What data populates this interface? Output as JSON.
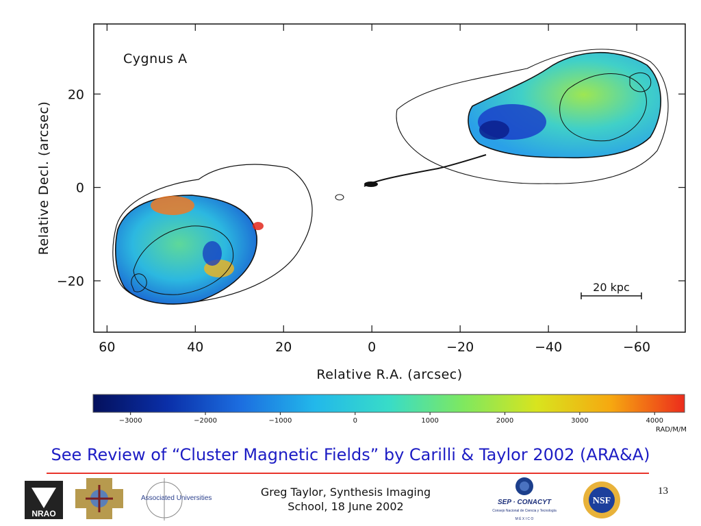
{
  "chart_data": {
    "type": "heatmap",
    "title": "Cygnus A",
    "xlabel": "Relative R.A. (arcsec)",
    "ylabel": "Relative Decl. (arcsec)",
    "xlim": [
      63,
      -71
    ],
    "ylim": [
      -31,
      35
    ],
    "x_ticks": [
      60,
      40,
      20,
      0,
      -20,
      -40,
      -60
    ],
    "x_tick_labels": [
      "60",
      "40",
      "20",
      "0",
      "−20",
      "−40",
      "−60"
    ],
    "y_ticks": [
      20,
      0,
      -20
    ],
    "y_tick_labels": [
      "20",
      "0",
      "−20"
    ],
    "scale_bar": {
      "label": "20 kpc"
    },
    "colorbar": {
      "range": [
        -3500,
        4400
      ],
      "ticks": [
        -3000,
        -2000,
        -1000,
        0,
        1000,
        2000,
        3000,
        4000
      ],
      "tick_labels": [
        "−3000",
        "−2000",
        "−1000",
        "0",
        "1000",
        "2000",
        "3000",
        "4000"
      ],
      "unit": "RAD/M/M",
      "colormap": [
        "#04105c",
        "#0a2fa8",
        "#1c6ee0",
        "#22b8ea",
        "#38dcc8",
        "#7ee860",
        "#d8e41e",
        "#f6a810",
        "#ec2c1c"
      ]
    },
    "components": [
      {
        "name": "eastern lobe",
        "center": [
          40,
          -12
        ],
        "extent": [
          20,
          12
        ]
      },
      {
        "name": "jet",
        "center": [
          -10,
          2
        ]
      },
      {
        "name": "core",
        "center": [
          0,
          0
        ]
      },
      {
        "name": "western lobe",
        "center": [
          -48,
          17
        ],
        "extent": [
          22,
          15
        ]
      }
    ]
  },
  "footer": {
    "review_text": "See Review of “Cluster Magnetic Fields” by Carilli & Taylor 2002 (ARA&A)",
    "author_line1": "Greg Taylor, Synthesis Imaging",
    "author_line2": "School, 18 June 2002",
    "slide_number": "13",
    "logos": {
      "nrao": "NRAO",
      "associated_universities": "Associated Universities, Inc.",
      "conacyt": "SEP · CONACYT",
      "conacyt_sub": "Consejo Nacional de Ciencia y Tecnología",
      "mexico": "M É X I C O",
      "nsf": "NSF"
    }
  }
}
